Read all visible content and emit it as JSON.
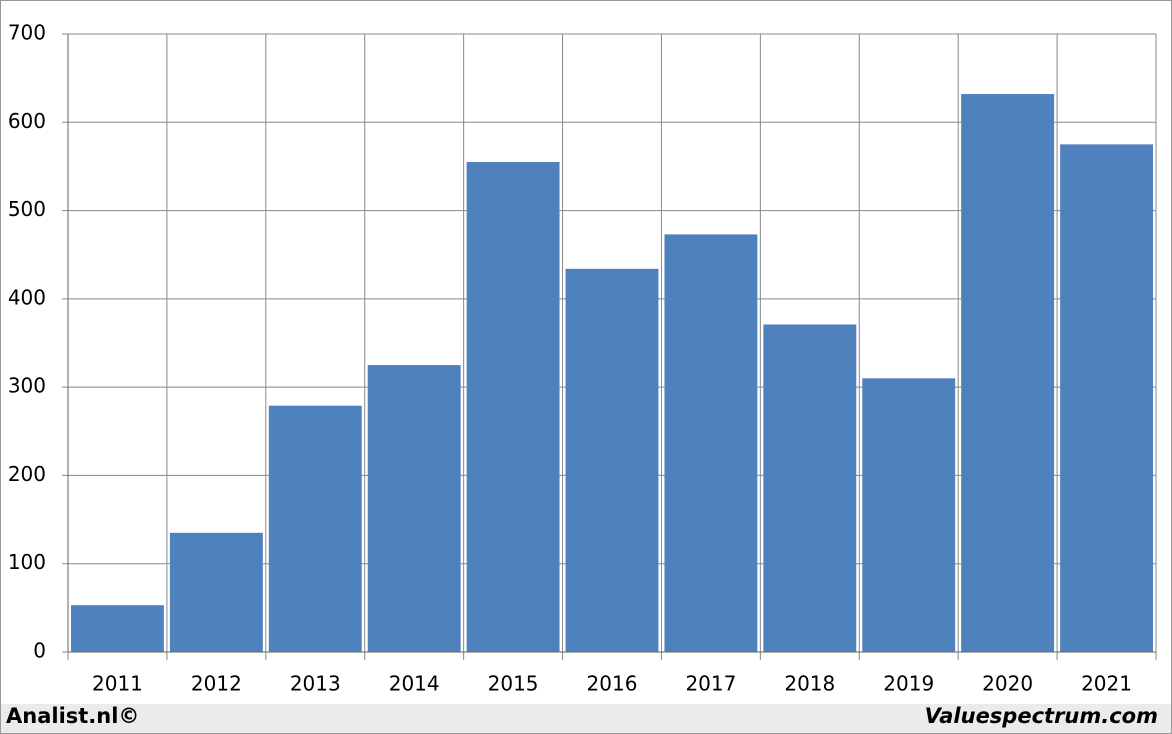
{
  "chart_data": {
    "type": "bar",
    "categories": [
      "2011",
      "2012",
      "2013",
      "2014",
      "2015",
      "2016",
      "2017",
      "2018",
      "2019",
      "2020",
      "2021"
    ],
    "values": [
      53,
      135,
      279,
      325,
      555,
      434,
      473,
      371,
      310,
      632,
      575
    ],
    "color": "#4f81bd",
    "ylim": [
      0,
      700
    ],
    "yticks": [
      0,
      100,
      200,
      300,
      400,
      500,
      600,
      700
    ],
    "grid": true
  },
  "footer": {
    "left": "Analist.nl©",
    "right": "Valuespectrum.com"
  }
}
